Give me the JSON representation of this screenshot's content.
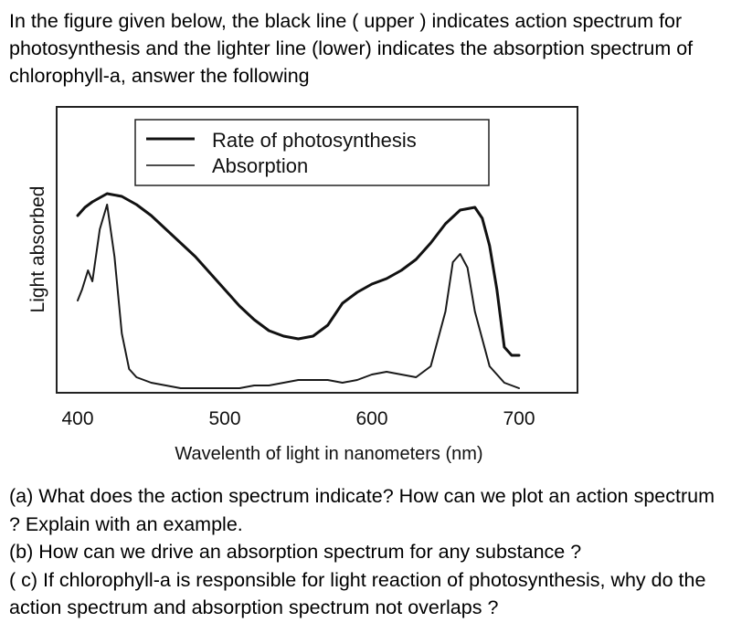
{
  "question": {
    "intro": "In the figure given below, the black line ( upper ) indicates action spectrum for photosynthesis and the lighter line (lower) indicates the absorption spectrum of chlorophyll-a, answer the following",
    "parts": [
      "(a) What does the action spectrum indicate? How can we plot an action spectrum ? Explain with an example.",
      "(b) How can we drive an absorption spectrum for any substance ?",
      "( c) If chlorophyll-a is responsible for light reaction of photosynthesis, why do the action spectrum and absorption spectrum not overlaps ?"
    ]
  },
  "colors": {
    "rate_line": "#111111",
    "absorption_line": "#1a1a1a",
    "frame": "#222222"
  },
  "chart_data": {
    "type": "line",
    "xlabel": "Wavelenth of light in nanometers (nm)",
    "ylabel": "Light absorbed",
    "xlim": [
      400,
      700
    ],
    "ylim": [
      0,
      100
    ],
    "xticks": [
      "400",
      "500",
      "600",
      "700"
    ],
    "grid": false,
    "legend_position": "top-right",
    "series": [
      {
        "name": "Rate of photosynthesis",
        "x": [
          400,
          405,
          410,
          420,
          430,
          440,
          450,
          460,
          470,
          480,
          490,
          500,
          510,
          520,
          530,
          540,
          550,
          560,
          570,
          580,
          590,
          600,
          610,
          620,
          630,
          640,
          650,
          660,
          670,
          675,
          680,
          685,
          690,
          695,
          700
        ],
        "y": [
          63,
          66,
          68,
          71,
          70,
          67,
          63,
          58,
          53,
          48,
          42,
          36,
          30,
          25,
          21,
          19,
          18,
          19,
          23,
          31,
          35,
          38,
          40,
          43,
          47,
          53,
          60,
          65,
          66,
          62,
          52,
          36,
          15,
          12,
          12
        ]
      },
      {
        "name": "Absorption",
        "x": [
          400,
          403,
          407,
          410,
          415,
          420,
          425,
          430,
          435,
          440,
          450,
          460,
          470,
          480,
          490,
          500,
          510,
          520,
          530,
          540,
          550,
          560,
          570,
          580,
          590,
          600,
          610,
          620,
          630,
          640,
          650,
          655,
          660,
          665,
          670,
          680,
          690,
          700
        ],
        "y": [
          32,
          36,
          43,
          39,
          58,
          67,
          48,
          20,
          7,
          4,
          2,
          1,
          0,
          0,
          0,
          0,
          0,
          1,
          1,
          2,
          3,
          3,
          3,
          2,
          3,
          5,
          6,
          5,
          4,
          8,
          28,
          46,
          49,
          44,
          28,
          8,
          2,
          0
        ]
      }
    ]
  }
}
